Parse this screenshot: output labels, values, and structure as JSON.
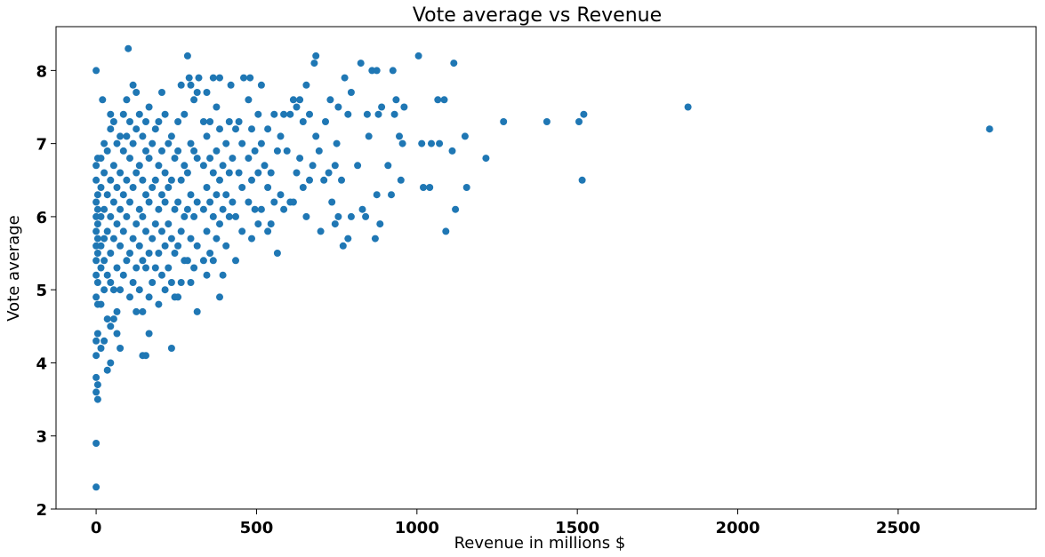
{
  "chart_data": {
    "type": "scatter",
    "title": "Vote average vs Revenue",
    "xlabel": "Revenue in millions $",
    "ylabel": "Vote average",
    "xlim": [
      -125,
      2930
    ],
    "ylim": [
      2.0,
      8.6
    ],
    "xticks": [
      0,
      500,
      1000,
      1500,
      2000,
      2500
    ],
    "yticks": [
      2,
      3,
      4,
      5,
      6,
      7,
      8
    ],
    "grid": false,
    "point_color": "#1f77b4",
    "points": [
      [
        0,
        8.0
      ],
      [
        0,
        2.9
      ],
      [
        0,
        2.3
      ],
      [
        0,
        3.6
      ],
      [
        0,
        3.8
      ],
      [
        0,
        4.1
      ],
      [
        0,
        4.3
      ],
      [
        0,
        4.9
      ],
      [
        0,
        5.2
      ],
      [
        0,
        5.4
      ],
      [
        0,
        5.6
      ],
      [
        0,
        5.8
      ],
      [
        0,
        6.0
      ],
      [
        0,
        6.2
      ],
      [
        0,
        6.5
      ],
      [
        0,
        6.7
      ],
      [
        5,
        3.5
      ],
      [
        5,
        3.7
      ],
      [
        5,
        4.4
      ],
      [
        5,
        4.8
      ],
      [
        5,
        5.1
      ],
      [
        5,
        5.5
      ],
      [
        5,
        5.7
      ],
      [
        5,
        5.9
      ],
      [
        5,
        6.1
      ],
      [
        5,
        6.3
      ],
      [
        5,
        6.8
      ],
      [
        15,
        4.2
      ],
      [
        15,
        4.8
      ],
      [
        15,
        5.3
      ],
      [
        15,
        5.6
      ],
      [
        15,
        6.0
      ],
      [
        15,
        6.4
      ],
      [
        15,
        6.8
      ],
      [
        20,
        7.6
      ],
      [
        25,
        4.3
      ],
      [
        25,
        5.0
      ],
      [
        25,
        5.4
      ],
      [
        25,
        5.7
      ],
      [
        25,
        6.1
      ],
      [
        25,
        6.6
      ],
      [
        25,
        7.0
      ],
      [
        35,
        3.9
      ],
      [
        35,
        4.6
      ],
      [
        35,
        5.2
      ],
      [
        35,
        5.8
      ],
      [
        35,
        6.3
      ],
      [
        35,
        6.9
      ],
      [
        45,
        4.0
      ],
      [
        45,
        4.5
      ],
      [
        45,
        5.1
      ],
      [
        45,
        5.5
      ],
      [
        45,
        6.0
      ],
      [
        45,
        6.5
      ],
      [
        45,
        7.2
      ],
      [
        45,
        7.4
      ],
      [
        55,
        4.6
      ],
      [
        55,
        5.0
      ],
      [
        55,
        5.7
      ],
      [
        55,
        6.2
      ],
      [
        55,
        6.7
      ],
      [
        55,
        7.3
      ],
      [
        65,
        4.4
      ],
      [
        65,
        4.7
      ],
      [
        65,
        5.3
      ],
      [
        65,
        5.9
      ],
      [
        65,
        6.4
      ],
      [
        65,
        7.0
      ],
      [
        75,
        4.2
      ],
      [
        75,
        5.0
      ],
      [
        75,
        5.6
      ],
      [
        75,
        6.1
      ],
      [
        75,
        6.6
      ],
      [
        75,
        7.1
      ],
      [
        85,
        5.2
      ],
      [
        85,
        5.8
      ],
      [
        85,
        6.3
      ],
      [
        85,
        6.9
      ],
      [
        85,
        7.4
      ],
      [
        95,
        5.4
      ],
      [
        95,
        6.0
      ],
      [
        95,
        6.5
      ],
      [
        95,
        7.1
      ],
      [
        95,
        7.6
      ],
      [
        100,
        8.3
      ],
      [
        105,
        4.9
      ],
      [
        105,
        5.5
      ],
      [
        105,
        6.2
      ],
      [
        105,
        6.8
      ],
      [
        105,
        7.3
      ],
      [
        115,
        5.1
      ],
      [
        115,
        5.7
      ],
      [
        115,
        6.4
      ],
      [
        115,
        7.0
      ],
      [
        115,
        7.8
      ],
      [
        125,
        4.7
      ],
      [
        125,
        5.3
      ],
      [
        125,
        5.9
      ],
      [
        125,
        6.6
      ],
      [
        125,
        7.2
      ],
      [
        125,
        7.7
      ],
      [
        135,
        5.0
      ],
      [
        135,
        5.6
      ],
      [
        135,
        6.1
      ],
      [
        135,
        6.7
      ],
      [
        135,
        7.4
      ],
      [
        145,
        4.1
      ],
      [
        145,
        4.7
      ],
      [
        145,
        5.4
      ],
      [
        145,
        6.0
      ],
      [
        145,
        6.5
      ],
      [
        145,
        7.1
      ],
      [
        155,
        4.1
      ],
      [
        155,
        5.3
      ],
      [
        155,
        5.8
      ],
      [
        155,
        6.3
      ],
      [
        155,
        6.9
      ],
      [
        155,
        7.3
      ],
      [
        165,
        4.4
      ],
      [
        165,
        4.9
      ],
      [
        165,
        5.5
      ],
      [
        165,
        6.2
      ],
      [
        165,
        6.8
      ],
      [
        165,
        7.5
      ],
      [
        175,
        5.1
      ],
      [
        175,
        5.7
      ],
      [
        175,
        6.4
      ],
      [
        175,
        7.0
      ],
      [
        185,
        5.3
      ],
      [
        185,
        5.9
      ],
      [
        185,
        6.5
      ],
      [
        185,
        7.2
      ],
      [
        195,
        4.8
      ],
      [
        195,
        5.5
      ],
      [
        195,
        6.1
      ],
      [
        195,
        6.7
      ],
      [
        195,
        7.3
      ],
      [
        205,
        5.2
      ],
      [
        205,
        5.8
      ],
      [
        205,
        6.3
      ],
      [
        205,
        6.9
      ],
      [
        205,
        7.7
      ],
      [
        215,
        5.0
      ],
      [
        215,
        5.6
      ],
      [
        215,
        6.2
      ],
      [
        215,
        6.6
      ],
      [
        215,
        7.4
      ],
      [
        225,
        5.3
      ],
      [
        225,
        5.9
      ],
      [
        225,
        6.4
      ],
      [
        225,
        7.0
      ],
      [
        235,
        4.2
      ],
      [
        235,
        5.1
      ],
      [
        235,
        5.7
      ],
      [
        235,
        6.5
      ],
      [
        235,
        7.1
      ],
      [
        245,
        4.9
      ],
      [
        245,
        5.5
      ],
      [
        245,
        6.1
      ],
      [
        245,
        6.8
      ],
      [
        255,
        4.9
      ],
      [
        255,
        5.6
      ],
      [
        255,
        6.2
      ],
      [
        255,
        6.9
      ],
      [
        255,
        7.3
      ],
      [
        265,
        5.1
      ],
      [
        265,
        5.8
      ],
      [
        265,
        6.5
      ],
      [
        265,
        7.8
      ],
      [
        275,
        5.4
      ],
      [
        275,
        6.0
      ],
      [
        275,
        6.7
      ],
      [
        275,
        7.4
      ],
      [
        285,
        5.4
      ],
      [
        285,
        6.1
      ],
      [
        285,
        6.6
      ],
      [
        285,
        8.2
      ],
      [
        290,
        7.9
      ],
      [
        295,
        5.1
      ],
      [
        295,
        5.7
      ],
      [
        295,
        6.3
      ],
      [
        295,
        7.0
      ],
      [
        295,
        7.8
      ],
      [
        305,
        5.3
      ],
      [
        305,
        6.0
      ],
      [
        305,
        6.9
      ],
      [
        305,
        7.6
      ],
      [
        315,
        4.7
      ],
      [
        315,
        5.6
      ],
      [
        315,
        6.2
      ],
      [
        315,
        6.8
      ],
      [
        315,
        7.7
      ],
      [
        320,
        7.9
      ],
      [
        335,
        5.4
      ],
      [
        335,
        6.1
      ],
      [
        335,
        6.7
      ],
      [
        335,
        7.3
      ],
      [
        345,
        5.2
      ],
      [
        345,
        5.8
      ],
      [
        345,
        6.4
      ],
      [
        345,
        7.1
      ],
      [
        345,
        7.7
      ],
      [
        355,
        5.5
      ],
      [
        355,
        6.2
      ],
      [
        355,
        6.8
      ],
      [
        355,
        7.3
      ],
      [
        365,
        5.4
      ],
      [
        365,
        6.0
      ],
      [
        365,
        6.6
      ],
      [
        365,
        7.9
      ],
      [
        375,
        5.7
      ],
      [
        375,
        6.3
      ],
      [
        375,
        6.9
      ],
      [
        375,
        7.5
      ],
      [
        385,
        4.9
      ],
      [
        385,
        5.9
      ],
      [
        385,
        6.5
      ],
      [
        385,
        7.2
      ],
      [
        385,
        7.9
      ],
      [
        395,
        5.2
      ],
      [
        395,
        6.1
      ],
      [
        395,
        6.7
      ],
      [
        405,
        5.6
      ],
      [
        405,
        6.3
      ],
      [
        405,
        7.0
      ],
      [
        415,
        6.0
      ],
      [
        415,
        6.6
      ],
      [
        415,
        7.3
      ],
      [
        420,
        7.8
      ],
      [
        425,
        6.2
      ],
      [
        425,
        6.8
      ],
      [
        435,
        5.4
      ],
      [
        435,
        6.0
      ],
      [
        435,
        7.2
      ],
      [
        445,
        6.6
      ],
      [
        445,
        7.3
      ],
      [
        455,
        5.8
      ],
      [
        455,
        6.4
      ],
      [
        455,
        7.0
      ],
      [
        460,
        7.9
      ],
      [
        475,
        6.2
      ],
      [
        475,
        6.8
      ],
      [
        475,
        7.6
      ],
      [
        480,
        7.9
      ],
      [
        485,
        5.7
      ],
      [
        485,
        6.5
      ],
      [
        485,
        7.2
      ],
      [
        495,
        6.1
      ],
      [
        495,
        6.9
      ],
      [
        505,
        5.9
      ],
      [
        505,
        6.6
      ],
      [
        505,
        7.4
      ],
      [
        515,
        6.1
      ],
      [
        515,
        7.0
      ],
      [
        515,
        7.8
      ],
      [
        525,
        6.7
      ],
      [
        535,
        5.8
      ],
      [
        535,
        6.4
      ],
      [
        535,
        7.2
      ],
      [
        545,
        5.9
      ],
      [
        545,
        6.6
      ],
      [
        555,
        6.2
      ],
      [
        555,
        7.4
      ],
      [
        565,
        5.5
      ],
      [
        565,
        6.9
      ],
      [
        575,
        6.3
      ],
      [
        575,
        7.1
      ],
      [
        585,
        6.1
      ],
      [
        585,
        7.4
      ],
      [
        595,
        6.9
      ],
      [
        605,
        6.2
      ],
      [
        605,
        7.4
      ],
      [
        615,
        6.2
      ],
      [
        615,
        7.6
      ],
      [
        625,
        6.6
      ],
      [
        625,
        7.5
      ],
      [
        635,
        6.8
      ],
      [
        635,
        7.6
      ],
      [
        645,
        6.4
      ],
      [
        645,
        7.3
      ],
      [
        655,
        6.0
      ],
      [
        655,
        7.8
      ],
      [
        665,
        6.5
      ],
      [
        665,
        7.4
      ],
      [
        675,
        6.7
      ],
      [
        680,
        8.1
      ],
      [
        685,
        8.2
      ],
      [
        685,
        7.1
      ],
      [
        695,
        6.9
      ],
      [
        700,
        5.8
      ],
      [
        710,
        6.5
      ],
      [
        715,
        7.3
      ],
      [
        725,
        6.6
      ],
      [
        730,
        7.6
      ],
      [
        735,
        6.2
      ],
      [
        745,
        5.9
      ],
      [
        745,
        6.7
      ],
      [
        750,
        7.0
      ],
      [
        755,
        6.0
      ],
      [
        755,
        7.5
      ],
      [
        765,
        6.5
      ],
      [
        770,
        5.6
      ],
      [
        775,
        7.9
      ],
      [
        785,
        5.7
      ],
      [
        785,
        7.4
      ],
      [
        795,
        6.0
      ],
      [
        795,
        7.7
      ],
      [
        815,
        6.7
      ],
      [
        825,
        8.1
      ],
      [
        830,
        6.1
      ],
      [
        840,
        6.0
      ],
      [
        845,
        7.4
      ],
      [
        850,
        7.1
      ],
      [
        860,
        8.0
      ],
      [
        870,
        5.7
      ],
      [
        875,
        6.3
      ],
      [
        875,
        8.0
      ],
      [
        880,
        7.4
      ],
      [
        885,
        5.9
      ],
      [
        890,
        7.5
      ],
      [
        910,
        6.7
      ],
      [
        920,
        6.3
      ],
      [
        925,
        8.0
      ],
      [
        930,
        7.4
      ],
      [
        935,
        7.6
      ],
      [
        945,
        7.1
      ],
      [
        950,
        6.5
      ],
      [
        955,
        7.0
      ],
      [
        960,
        7.5
      ],
      [
        1005,
        8.2
      ],
      [
        1015,
        7.0
      ],
      [
        1020,
        6.4
      ],
      [
        1040,
        6.4
      ],
      [
        1045,
        7.0
      ],
      [
        1065,
        7.6
      ],
      [
        1070,
        7.0
      ],
      [
        1085,
        7.6
      ],
      [
        1090,
        5.8
      ],
      [
        1110,
        6.9
      ],
      [
        1115,
        8.1
      ],
      [
        1120,
        6.1
      ],
      [
        1150,
        7.1
      ],
      [
        1155,
        6.4
      ],
      [
        1215,
        6.8
      ],
      [
        1270,
        7.3
      ],
      [
        1405,
        7.3
      ],
      [
        1505,
        7.3
      ],
      [
        1515,
        6.5
      ],
      [
        1520,
        7.4
      ],
      [
        1845,
        7.5
      ],
      [
        2785,
        7.2
      ]
    ]
  }
}
